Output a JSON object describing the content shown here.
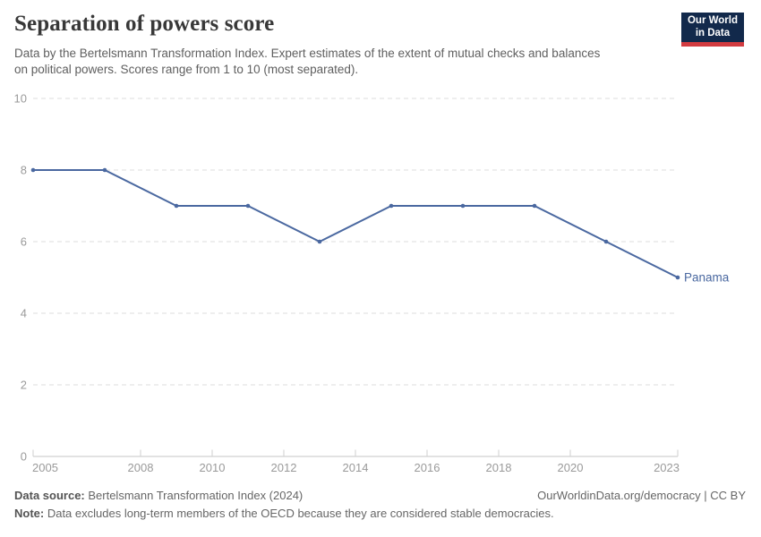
{
  "header": {
    "title": "Separation of powers score",
    "subtitle_lines": [
      "Data by the Bertelsmann Transformation Index. Expert estimates of the extent of mutual checks and balances",
      "on political powers. Scores range from 1 to 10 (most separated)."
    ],
    "logo": {
      "line1": "Our World",
      "line2": "in Data"
    }
  },
  "chart_data": {
    "type": "line",
    "title": "Separation of powers score",
    "subtitle": "Data by the Bertelsmann Transformation Index. Expert estimates of the extent of mutual checks and balances on political powers. Scores range from 1 to 10 (most separated).",
    "x": [
      2005,
      2007,
      2009,
      2011,
      2013,
      2015,
      2017,
      2019,
      2021,
      2023
    ],
    "series": [
      {
        "name": "Panama",
        "values": [
          8,
          8,
          7,
          7,
          6,
          7,
          7,
          7,
          6,
          5
        ],
        "color": "#4a68a0"
      }
    ],
    "x_ticks": [
      "2005",
      "2008",
      "2010",
      "2012",
      "2014",
      "2016",
      "2018",
      "2020",
      "2023"
    ],
    "x_tick_years": [
      2005,
      2008,
      2010,
      2012,
      2014,
      2016,
      2018,
      2020,
      2023
    ],
    "y_ticks": [
      0,
      2,
      4,
      6,
      8,
      10
    ],
    "xlim": [
      2005,
      2023
    ],
    "ylim": [
      0,
      10
    ],
    "xlabel": "",
    "ylabel": "",
    "grid": "horizontal-dashed",
    "legend_position": "end-of-line-label",
    "colors": {
      "line": "#4a68a0",
      "gridline": "#dcdcdc",
      "axis_line": "#c6c6c6",
      "tick_mark": "#cfcfcf",
      "tick_label": "#9a9a9a"
    }
  },
  "footer": {
    "source_label": "Data source:",
    "source_text": " Bertelsmann Transformation Index (2024)",
    "rights": "OurWorldinData.org/democracy | CC BY",
    "note_label": "Note:",
    "note_text": " Data excludes long-term members of the OECD because they are considered stable democracies."
  }
}
